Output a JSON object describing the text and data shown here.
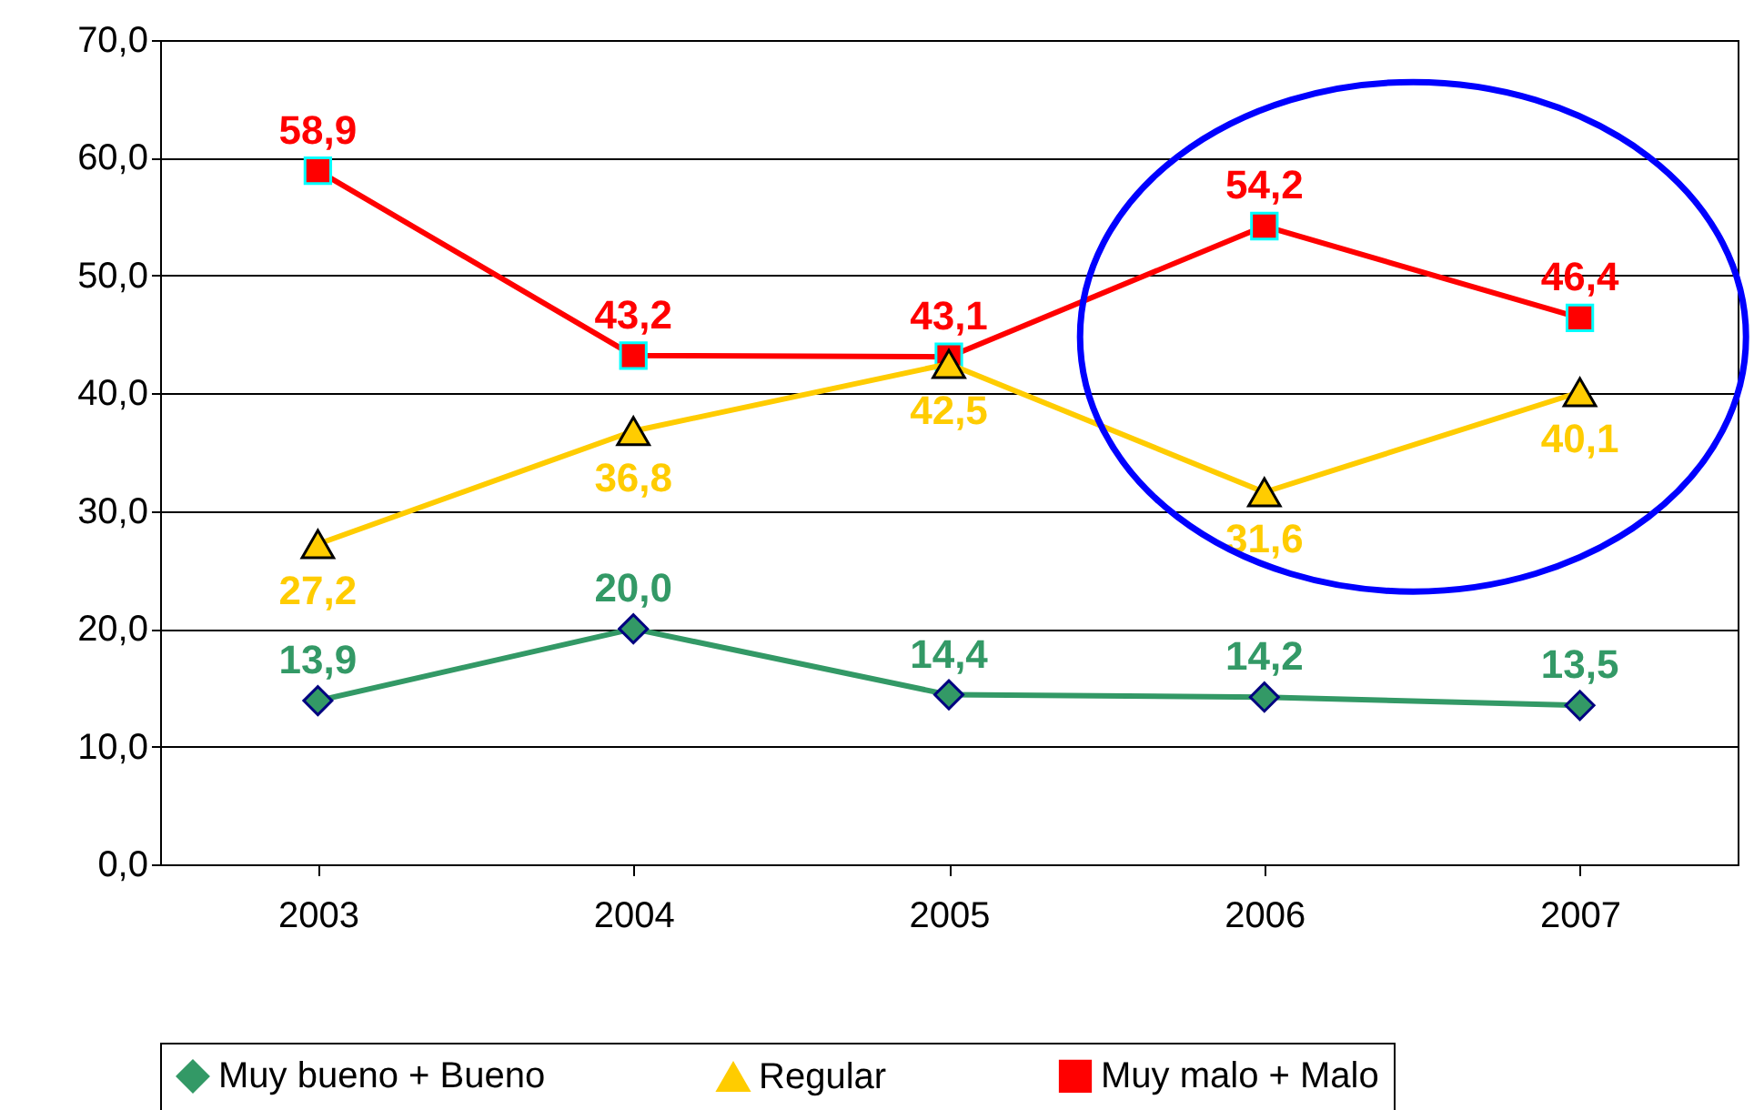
{
  "chart_data": {
    "type": "line",
    "categories": [
      "2003",
      "2004",
      "2005",
      "2006",
      "2007"
    ],
    "ylim": [
      0,
      70
    ],
    "yticks": [
      {
        "value": 0,
        "label": "0,0"
      },
      {
        "value": 10,
        "label": "10,0"
      },
      {
        "value": 20,
        "label": "20,0"
      },
      {
        "value": 30,
        "label": "30,0"
      },
      {
        "value": 40,
        "label": "40,0"
      },
      {
        "value": 50,
        "label": "50,0"
      },
      {
        "value": 60,
        "label": "60,0"
      },
      {
        "value": 70,
        "label": "70,0"
      }
    ],
    "grid": "y",
    "legend": "bottom",
    "series": [
      {
        "name": "Muy bueno + Bueno",
        "color": "#339966",
        "marker": "diamond",
        "values": [
          13.9,
          20.0,
          14.4,
          14.2,
          13.5
        ],
        "value_labels": [
          "13,9",
          "20,0",
          "14,4",
          "14,2",
          "13,5"
        ]
      },
      {
        "name": "Regular",
        "color": "#ffcc00",
        "marker": "triangle",
        "values": [
          27.2,
          36.8,
          42.5,
          31.6,
          40.1
        ],
        "value_labels": [
          "27,2",
          "36,8",
          "42,5",
          "31,6",
          "40,1"
        ]
      },
      {
        "name": "Muy malo + Malo",
        "color": "#ff0000",
        "marker": "square",
        "values": [
          58.9,
          43.2,
          43.1,
          54.2,
          46.4
        ],
        "value_labels": [
          "58,9",
          "43,2",
          "43,1",
          "54,2",
          "46,4"
        ]
      }
    ]
  }
}
